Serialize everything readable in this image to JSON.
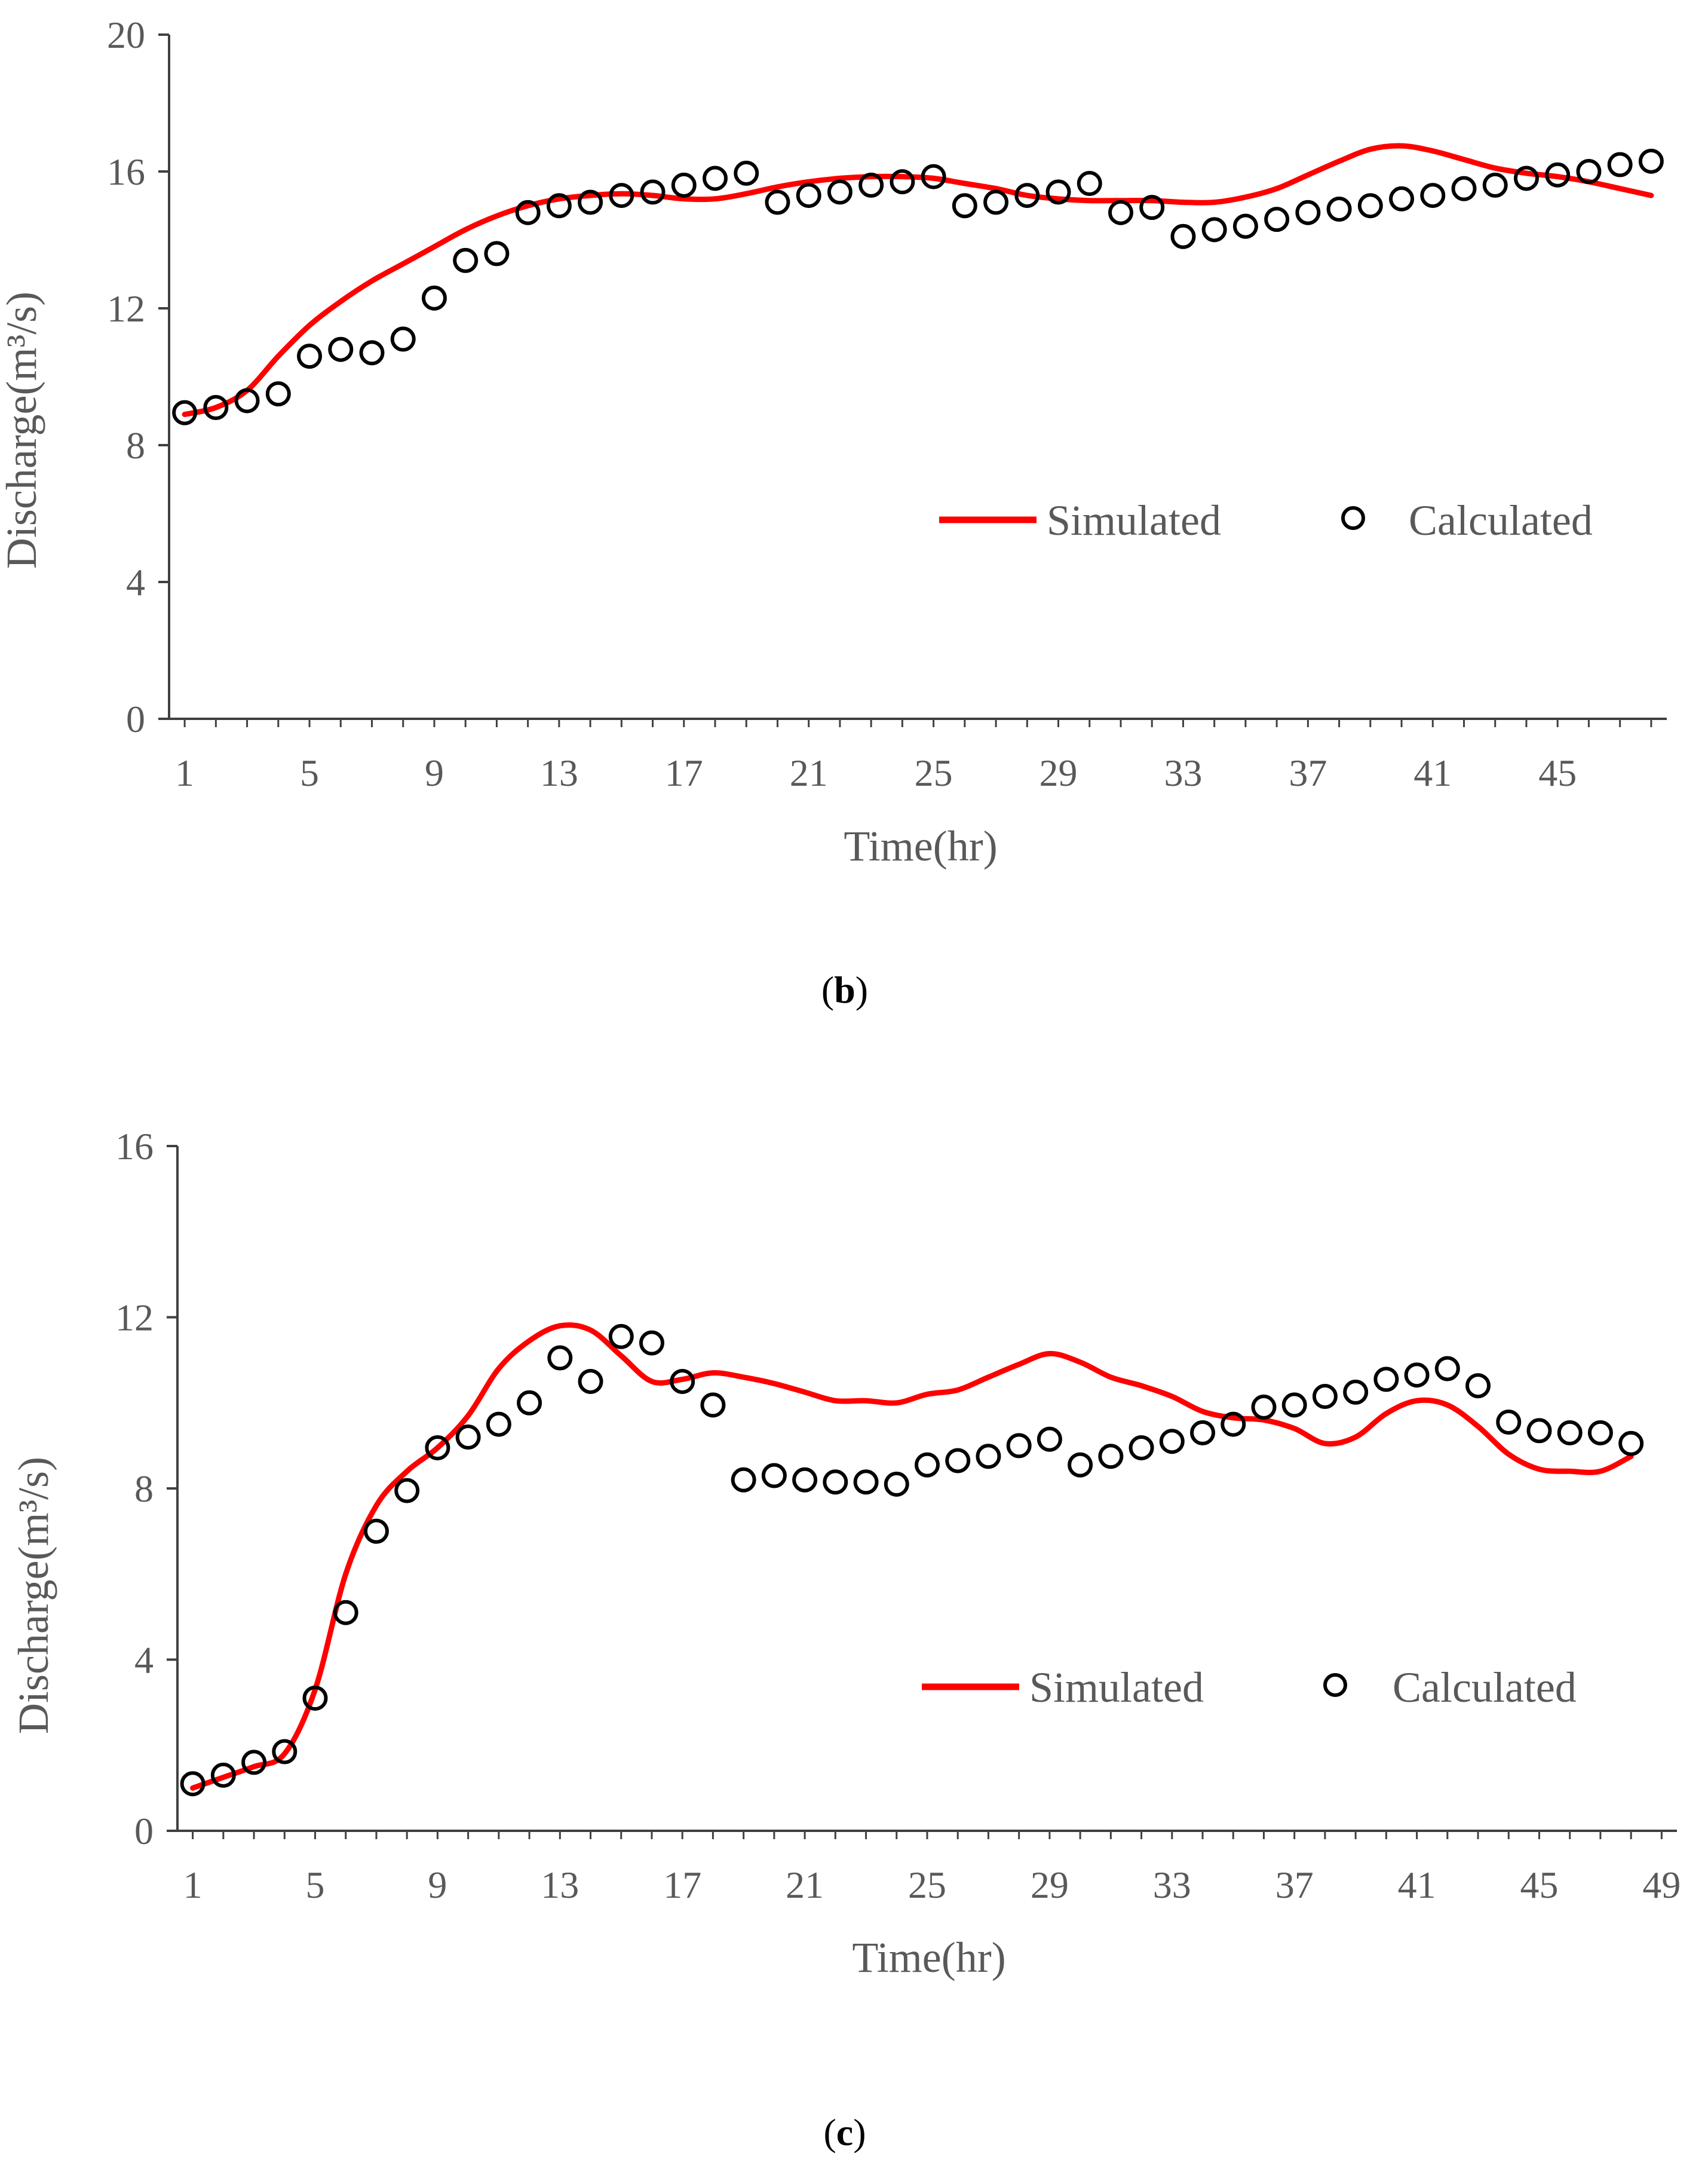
{
  "colors": {
    "simulated": "#FF0000",
    "calculated": "#000000",
    "axis": "#404040",
    "text": "#595959"
  },
  "chart_data": [
    {
      "panel": "b",
      "type": "line",
      "xlabel": "Time(hr)",
      "ylabel": "Discharge(m³/s)",
      "xlim": [
        0.5,
        48.5
      ],
      "ylim": [
        0,
        20
      ],
      "xticks": [
        1,
        5,
        9,
        13,
        17,
        21,
        25,
        29,
        33,
        37,
        41,
        45
      ],
      "yticks": [
        0,
        4,
        8,
        12,
        16,
        20
      ],
      "legend": {
        "placement": "center-right",
        "simulated": "Simulated",
        "calculated": "Calculated"
      },
      "series": [
        {
          "name": "Simulated",
          "style": "line",
          "x": [
            1,
            2,
            3,
            4,
            5,
            6,
            7,
            8,
            9,
            10,
            11,
            12,
            13,
            14,
            15,
            16,
            17,
            18,
            19,
            20,
            21,
            22,
            23,
            24,
            25,
            26,
            27,
            28,
            29,
            30,
            31,
            32,
            33,
            34,
            35,
            36,
            37,
            38,
            39,
            40,
            41,
            42,
            43,
            44,
            45,
            46,
            47,
            48
          ],
          "values": [
            8.9,
            9.1,
            9.6,
            10.6,
            11.5,
            12.2,
            12.8,
            13.3,
            13.8,
            14.3,
            14.7,
            15.0,
            15.2,
            15.3,
            15.35,
            15.3,
            15.2,
            15.2,
            15.35,
            15.55,
            15.7,
            15.8,
            15.85,
            15.85,
            15.8,
            15.65,
            15.5,
            15.3,
            15.2,
            15.15,
            15.15,
            15.15,
            15.1,
            15.1,
            15.25,
            15.5,
            15.9,
            16.3,
            16.65,
            16.75,
            16.6,
            16.35,
            16.1,
            15.95,
            15.85,
            15.7,
            15.5,
            15.3
          ]
        },
        {
          "name": "Calculated",
          "style": "markers",
          "x": [
            1,
            2,
            3,
            4,
            5,
            6,
            7,
            8,
            9,
            10,
            11,
            12,
            13,
            14,
            15,
            16,
            17,
            18,
            19,
            20,
            21,
            22,
            23,
            24,
            25,
            26,
            27,
            28,
            29,
            30,
            31,
            32,
            33,
            34,
            35,
            36,
            37,
            38,
            39,
            40,
            41,
            42,
            43,
            44,
            45,
            46,
            47,
            48
          ],
          "values": [
            8.95,
            9.1,
            9.3,
            9.5,
            10.6,
            10.8,
            10.7,
            11.1,
            12.3,
            13.4,
            13.6,
            14.8,
            15.0,
            15.1,
            15.3,
            15.4,
            15.6,
            15.8,
            15.95,
            15.1,
            15.3,
            15.4,
            15.6,
            15.7,
            15.85,
            15.0,
            15.1,
            15.3,
            15.4,
            15.65,
            14.8,
            14.95,
            14.1,
            14.3,
            14.4,
            14.6,
            14.8,
            14.9,
            15.0,
            15.2,
            15.3,
            15.5,
            15.6,
            15.8,
            15.9,
            16.0,
            16.2,
            16.3
          ]
        }
      ],
      "caption": "b"
    },
    {
      "panel": "c",
      "type": "line",
      "xlabel": "Time(hr)",
      "ylabel": "Discharge(m³/s)",
      "xlim": [
        0.5,
        49.5
      ],
      "ylim": [
        0,
        16
      ],
      "xticks": [
        1,
        5,
        9,
        13,
        17,
        21,
        25,
        29,
        33,
        37,
        41,
        45,
        49
      ],
      "yticks": [
        0,
        4,
        8,
        12,
        16
      ],
      "legend": {
        "placement": "center-right",
        "simulated": "Simulated",
        "calculated": "Calculated"
      },
      "series": [
        {
          "name": "Simulated",
          "style": "line",
          "x": [
            1,
            2,
            3,
            4,
            5,
            6,
            7,
            8,
            9,
            10,
            11,
            12,
            13,
            14,
            15,
            16,
            17,
            18,
            19,
            20,
            21,
            22,
            23,
            24,
            25,
            26,
            27,
            28,
            29,
            30,
            31,
            32,
            33,
            34,
            35,
            36,
            37,
            38,
            39,
            40,
            41,
            42,
            43,
            44,
            45,
            46,
            47,
            48
          ],
          "values": [
            1.0,
            1.25,
            1.5,
            1.8,
            3.3,
            6.0,
            7.6,
            8.4,
            8.95,
            9.7,
            10.8,
            11.45,
            11.8,
            11.7,
            11.1,
            10.5,
            10.55,
            10.7,
            10.6,
            10.45,
            10.25,
            10.05,
            10.05,
            10.0,
            10.2,
            10.3,
            10.6,
            10.9,
            11.15,
            10.95,
            10.6,
            10.4,
            10.15,
            9.8,
            9.65,
            9.6,
            9.4,
            9.05,
            9.2,
            9.75,
            10.05,
            9.95,
            9.45,
            8.8,
            8.45,
            8.4,
            8.4,
            8.75
          ]
        },
        {
          "name": "Calculated",
          "style": "markers",
          "x": [
            1,
            2,
            3,
            4,
            5,
            6,
            7,
            8,
            9,
            10,
            11,
            12,
            13,
            14,
            15,
            16,
            17,
            18,
            19,
            20,
            21,
            22,
            23,
            24,
            25,
            26,
            27,
            28,
            29,
            30,
            31,
            32,
            33,
            34,
            35,
            36,
            37,
            38,
            39,
            40,
            41,
            42,
            43,
            44,
            45,
            46,
            47,
            48
          ],
          "values": [
            1.1,
            1.3,
            1.6,
            1.85,
            3.1,
            5.1,
            7.0,
            7.95,
            8.95,
            9.2,
            9.5,
            10.0,
            11.05,
            10.5,
            11.55,
            11.4,
            10.5,
            9.95,
            8.2,
            8.3,
            8.2,
            8.15,
            8.15,
            8.1,
            8.55,
            8.65,
            8.75,
            9.0,
            9.15,
            8.55,
            8.75,
            8.95,
            9.1,
            9.3,
            9.5,
            9.9,
            9.95,
            10.15,
            10.25,
            10.55,
            10.65,
            10.8,
            10.4,
            9.55,
            9.35,
            9.3,
            9.3,
            9.05
          ]
        }
      ],
      "caption": "c"
    }
  ]
}
